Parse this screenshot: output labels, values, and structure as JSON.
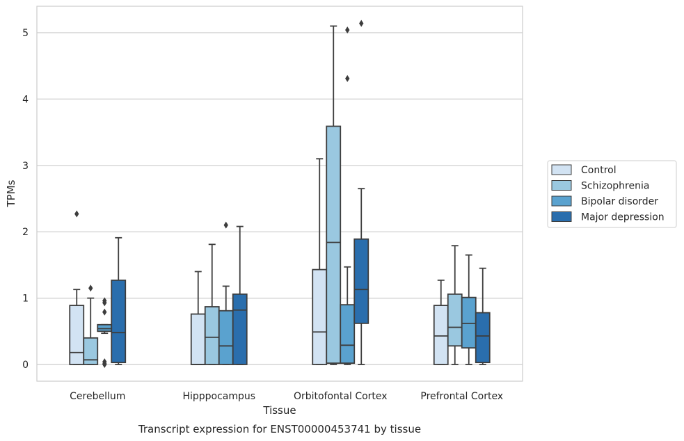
{
  "chart_data": {
    "type": "box",
    "title": "",
    "caption": "Transcript expression for ENST00000453741 by tissue",
    "xlabel": "Tissue",
    "ylabel": "TPMs",
    "ylim": [
      -0.25,
      5.4
    ],
    "yticks": [
      0,
      1,
      2,
      3,
      4,
      5
    ],
    "grid": "horizontal",
    "legend_position": "right",
    "categories": [
      "Cerebellum",
      "Hipppocampus",
      "Orbitofontal Cortex",
      "Prefrontal Cortex"
    ],
    "series": [
      {
        "name": "Control",
        "color": "#d2e3f3",
        "boxes": [
          {
            "whislo": 0,
            "q1": 0,
            "med": 0.18,
            "q3": 0.89,
            "whishi": 1.13,
            "fliers": [
              2.27
            ]
          },
          {
            "whislo": 0,
            "q1": 0,
            "med": 0,
            "q3": 0.76,
            "whishi": 1.4,
            "fliers": []
          },
          {
            "whislo": 0,
            "q1": 0,
            "med": 0.49,
            "q3": 1.43,
            "whishi": 3.1,
            "fliers": []
          },
          {
            "whislo": 0,
            "q1": 0,
            "med": 0.43,
            "q3": 0.89,
            "whishi": 1.27,
            "fliers": []
          }
        ]
      },
      {
        "name": "Schizophrenia",
        "color": "#9ac8e0",
        "boxes": [
          {
            "whislo": 0,
            "q1": 0,
            "med": 0.07,
            "q3": 0.4,
            "whishi": 1.0,
            "fliers": [
              1.15
            ]
          },
          {
            "whislo": 0,
            "q1": 0,
            "med": 0.41,
            "q3": 0.87,
            "whishi": 1.81,
            "fliers": []
          },
          {
            "whislo": 0,
            "q1": 0.02,
            "med": 1.84,
            "q3": 3.59,
            "whishi": 5.1,
            "fliers": []
          },
          {
            "whislo": 0,
            "q1": 0.28,
            "med": 0.56,
            "q3": 1.06,
            "whishi": 1.79,
            "fliers": []
          }
        ]
      },
      {
        "name": "Bipolar disorder",
        "color": "#5aa2cf",
        "boxes": [
          {
            "whislo": 0.47,
            "q1": 0.5,
            "med": 0.54,
            "q3": 0.6,
            "whishi": 0.6,
            "fliers": [
              0.96,
              0.93,
              0.79,
              0.04,
              0.01,
              0.0
            ]
          },
          {
            "whislo": 0,
            "q1": 0,
            "med": 0.28,
            "q3": 0.81,
            "whishi": 1.18,
            "fliers": [
              2.1
            ]
          },
          {
            "whislo": 0,
            "q1": 0.02,
            "med": 0.29,
            "q3": 0.9,
            "whishi": 1.47,
            "fliers": [
              4.31,
              5.04
            ]
          },
          {
            "whislo": 0,
            "q1": 0.25,
            "med": 0.62,
            "q3": 1.01,
            "whishi": 1.65,
            "fliers": []
          }
        ]
      },
      {
        "name": "Major depression",
        "color": "#2a6ead",
        "boxes": [
          {
            "whislo": 0,
            "q1": 0.03,
            "med": 0.48,
            "q3": 1.27,
            "whishi": 1.91,
            "fliers": []
          },
          {
            "whislo": 0,
            "q1": 0,
            "med": 0.82,
            "q3": 1.06,
            "whishi": 2.08,
            "fliers": []
          },
          {
            "whislo": 0,
            "q1": 0.62,
            "med": 1.13,
            "q3": 1.89,
            "whishi": 2.65,
            "fliers": [
              5.14
            ]
          },
          {
            "whislo": 0,
            "q1": 0.03,
            "med": 0.43,
            "q3": 0.78,
            "whishi": 1.45,
            "fliers": []
          }
        ]
      }
    ]
  }
}
